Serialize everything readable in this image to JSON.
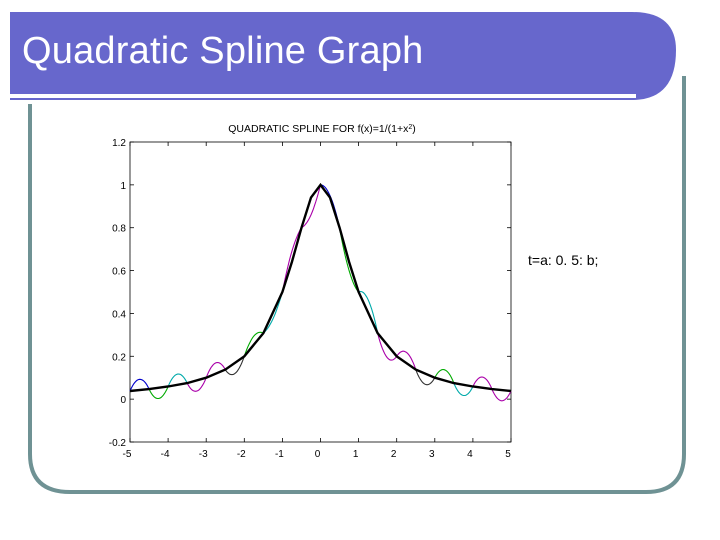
{
  "slide": {
    "title": "Quadratic Spline Graph",
    "note": "t=a: 0. 5: b;"
  },
  "colors": {
    "banner": "#6767cc",
    "frame_border": "#6f9294",
    "banner_underline": "#ffffff"
  },
  "chart_data": {
    "type": "line",
    "title": "QUADRATIC SPLINE FOR f(x)=1/(1+x^2)",
    "title_main": "QUADRATIC  SPLINE  FOR  f(x)=1/(1+x",
    "title_sup": "2",
    "title_end": ")",
    "xlabel": "",
    "ylabel": "",
    "xlim": [
      -5,
      5
    ],
    "ylim": [
      -0.2,
      1.2
    ],
    "xticks": [
      -5,
      -4,
      -3,
      -2,
      -1,
      0,
      1,
      2,
      3,
      4,
      5
    ],
    "xtick_labels": [
      "-5",
      "-4",
      "-3",
      "-2",
      "-1",
      "0",
      "1",
      "2",
      "3",
      "4",
      "5"
    ],
    "yticks": [
      -0.2,
      0,
      0.2,
      0.4,
      0.6,
      0.8,
      1,
      1.2
    ],
    "ytick_labels": [
      "-0.2",
      "0",
      "0.2",
      "0.4",
      "0.6",
      "0.8",
      "1",
      "1.2"
    ],
    "grid": false,
    "legend": "none",
    "function_curve": {
      "color": "#000000",
      "x": [
        -5,
        -4.5,
        -4,
        -3.5,
        -3,
        -2.5,
        -2,
        -1.5,
        -1,
        -0.75,
        -0.5,
        -0.25,
        0,
        0.25,
        0.5,
        0.75,
        1,
        1.5,
        2,
        2.5,
        3,
        3.5,
        4,
        4.5,
        5
      ],
      "y": [
        0.038,
        0.047,
        0.059,
        0.075,
        0.1,
        0.138,
        0.2,
        0.308,
        0.5,
        0.64,
        0.8,
        0.941,
        1,
        0.941,
        0.8,
        0.64,
        0.5,
        0.308,
        0.2,
        0.138,
        0.1,
        0.075,
        0.059,
        0.047,
        0.038
      ]
    },
    "spline_knots": {
      "x": [
        -5,
        -4.5,
        -4,
        -3.5,
        -3,
        -2.5,
        -2,
        -1.5,
        -1,
        -0.5,
        0,
        0.5,
        1,
        1.5,
        2,
        2.5,
        3,
        3.5,
        4,
        4.5,
        5
      ],
      "y": [
        0.038,
        0.047,
        0.059,
        0.075,
        0.1,
        0.138,
        0.2,
        0.308,
        0.5,
        0.8,
        1,
        0.8,
        0.5,
        0.308,
        0.2,
        0.138,
        0.1,
        0.075,
        0.059,
        0.047,
        0.038
      ],
      "bulges": [
        0.05,
        -0.05,
        0.05,
        -0.05,
        0.05,
        -0.05,
        0.04,
        -0.03,
        0.04,
        -0.04,
        0.05,
        -0.05,
        0.06,
        -0.06,
        0.05,
        -0.05,
        0.05,
        -0.05,
        0.05,
        -0.05
      ]
    },
    "spline_colors": [
      "#0000cc",
      "#00aa00",
      "#00aaaa",
      "#aa00aa",
      "#aa00aa",
      "#333333",
      "#00aa00",
      "#00aaaa",
      "#aa00aa",
      "#aa00aa",
      "#0000cc",
      "#00aa00",
      "#00aaaa",
      "#aa00aa",
      "#aa00aa",
      "#333333",
      "#00aa00",
      "#00aaaa",
      "#aa00aa",
      "#aa00aa"
    ]
  }
}
